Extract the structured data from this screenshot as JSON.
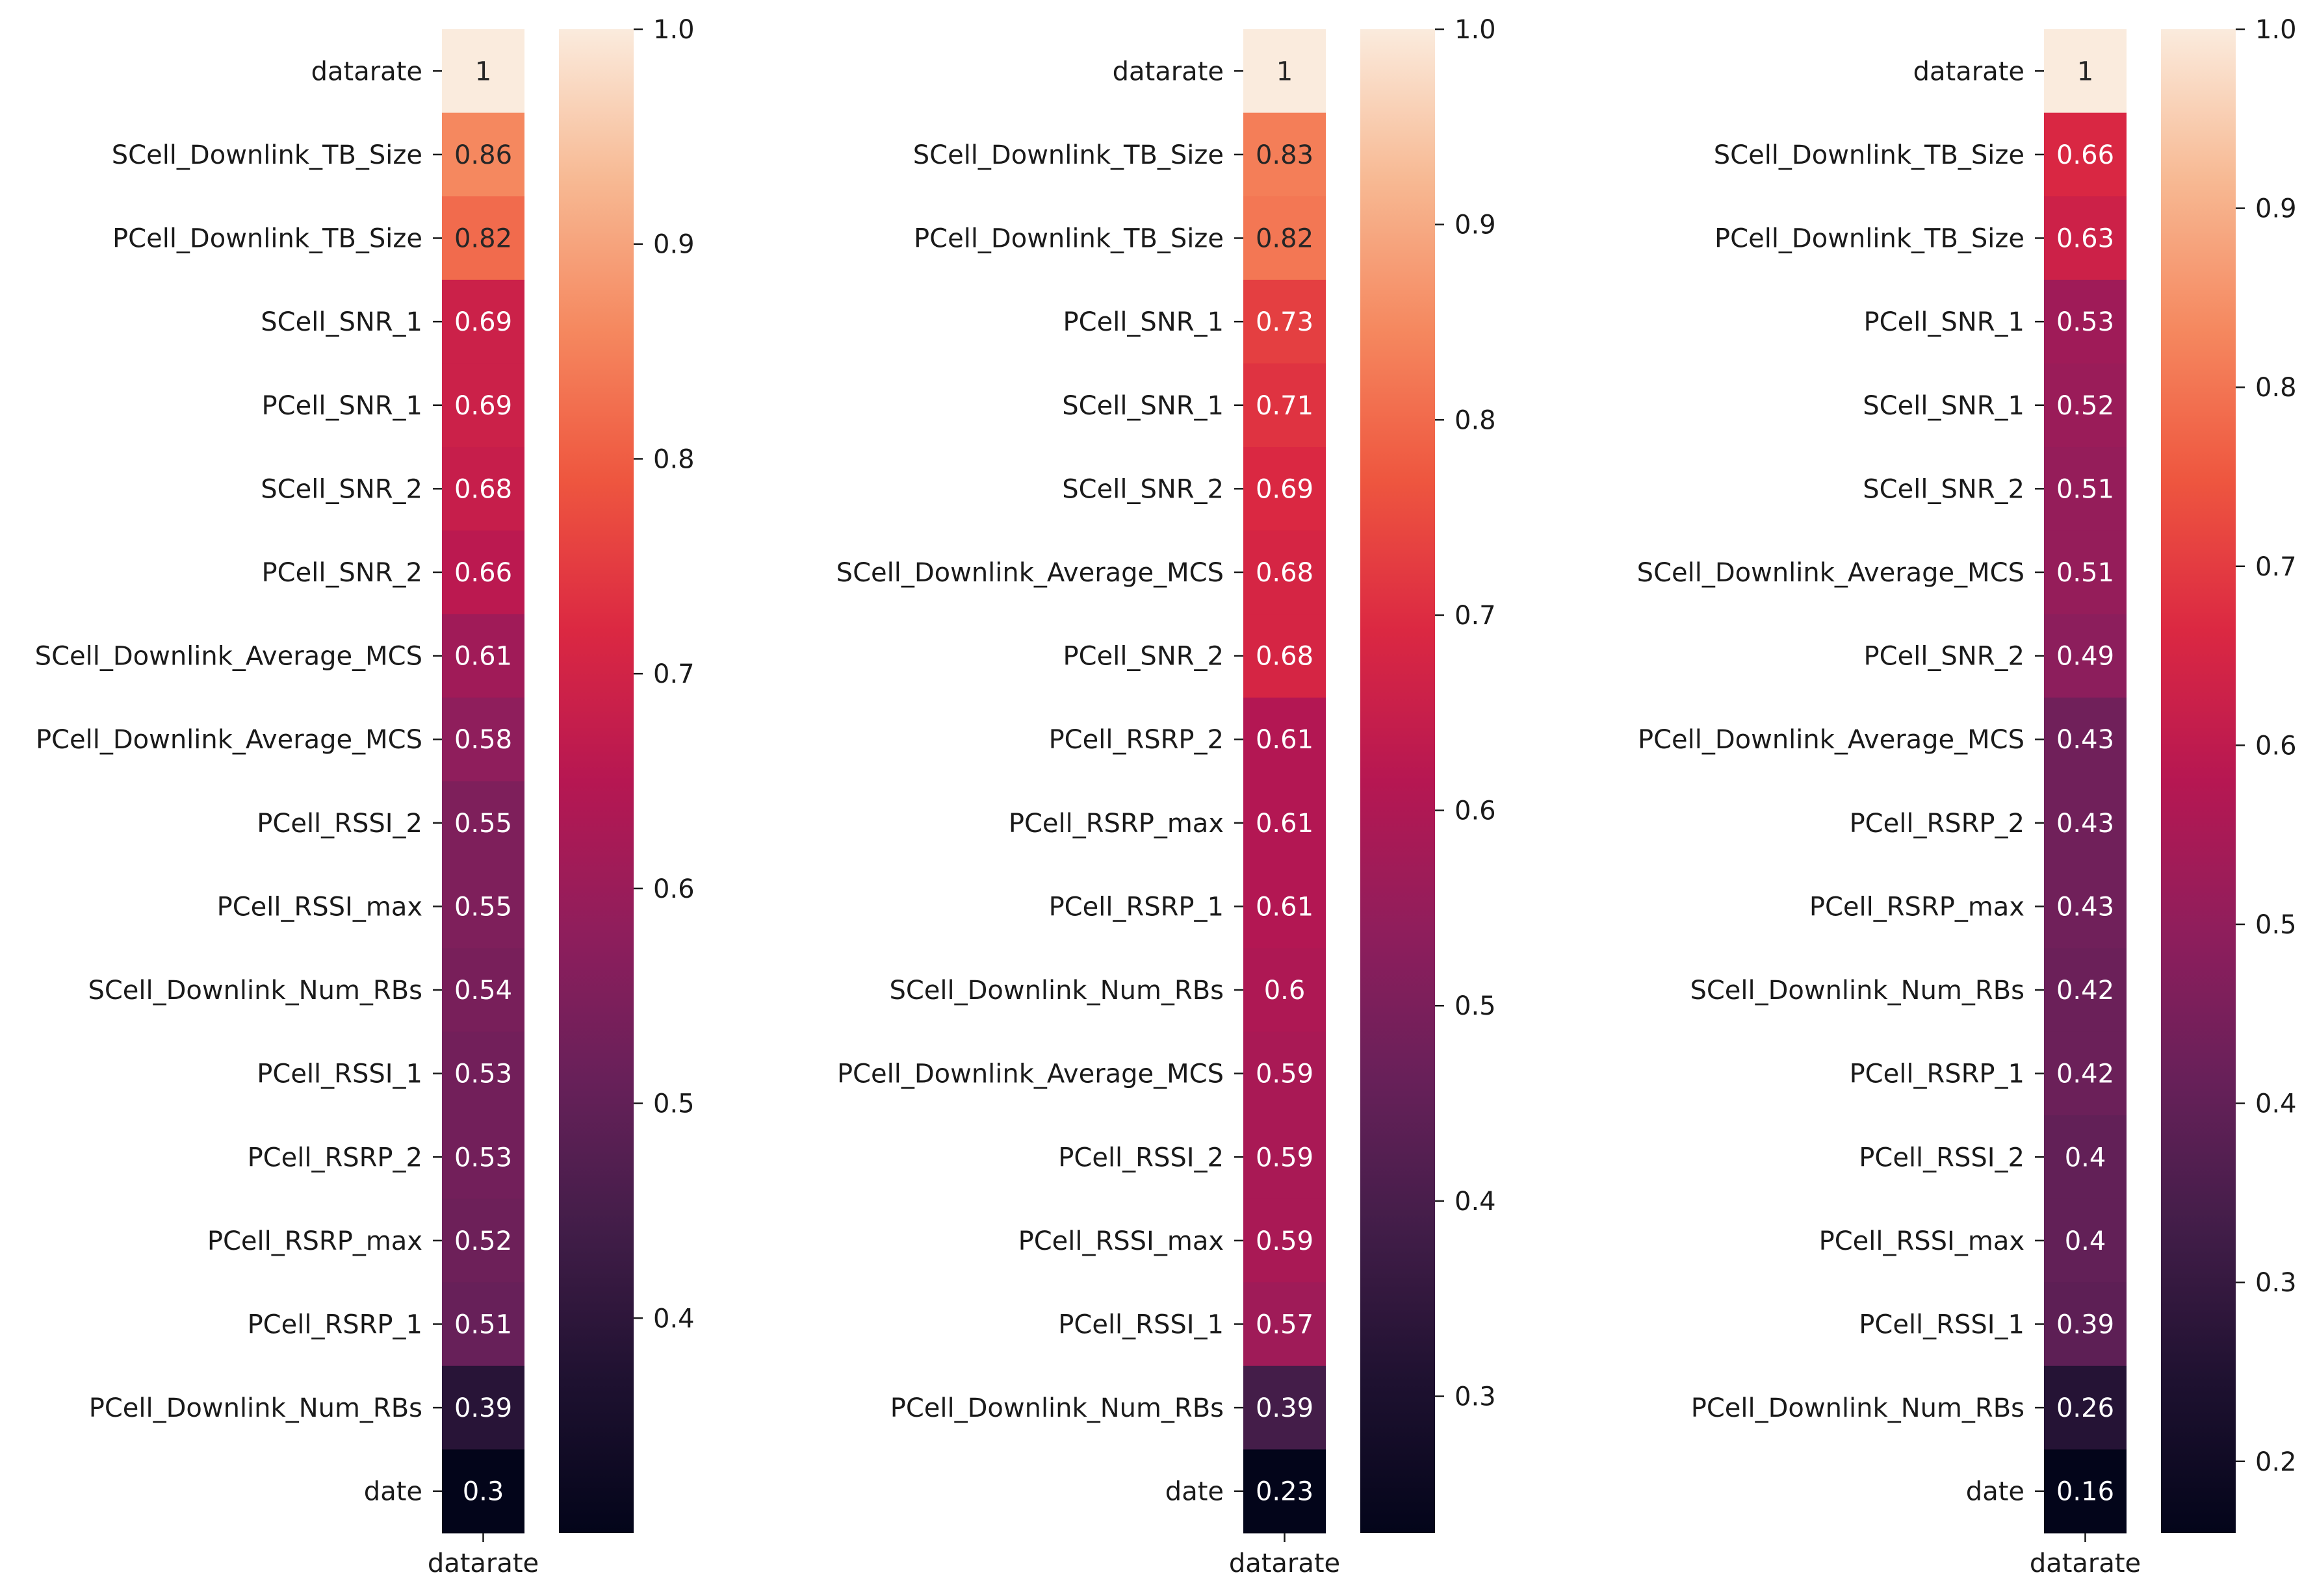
{
  "chart_data": [
    {
      "type": "heatmap",
      "title": "",
      "xlabel": "",
      "ylabel": "",
      "x_categories": [
        "datarate"
      ],
      "rows": [
        "datarate",
        "SCell_Downlink_TB_Size",
        "PCell_Downlink_TB_Size",
        "SCell_SNR_1",
        "PCell_SNR_1",
        "SCell_SNR_2",
        "PCell_SNR_2",
        "SCell_Downlink_Average_MCS",
        "PCell_Downlink_Average_MCS",
        "PCell_RSSI_2",
        "PCell_RSSI_max",
        "SCell_Downlink_Num_RBs",
        "PCell_RSSI_1",
        "PCell_RSRP_2",
        "PCell_RSRP_max",
        "PCell_RSRP_1",
        "PCell_Downlink_Num_RBs",
        "date"
      ],
      "values": [
        1,
        0.86,
        0.82,
        0.69,
        0.69,
        0.68,
        0.66,
        0.61,
        0.58,
        0.55,
        0.55,
        0.54,
        0.53,
        0.53,
        0.52,
        0.51,
        0.39,
        0.3
      ],
      "value_labels": [
        "1",
        "0.86",
        "0.82",
        "0.69",
        "0.69",
        "0.68",
        "0.66",
        "0.61",
        "0.58",
        "0.55",
        "0.55",
        "0.54",
        "0.53",
        "0.53",
        "0.52",
        "0.51",
        "0.39",
        "0.3"
      ],
      "colorbar": {
        "min": 0.3,
        "max": 1.0,
        "ticks": [
          "0.4",
          "0.5",
          "0.6",
          "0.7",
          "0.8",
          "0.9",
          "1.0"
        ]
      },
      "colormap": "rocket"
    },
    {
      "type": "heatmap",
      "title": "",
      "xlabel": "",
      "ylabel": "",
      "x_categories": [
        "datarate"
      ],
      "rows": [
        "datarate",
        "SCell_Downlink_TB_Size",
        "PCell_Downlink_TB_Size",
        "PCell_SNR_1",
        "SCell_SNR_1",
        "SCell_SNR_2",
        "SCell_Downlink_Average_MCS",
        "PCell_SNR_2",
        "PCell_RSRP_2",
        "PCell_RSRP_max",
        "PCell_RSRP_1",
        "SCell_Downlink_Num_RBs",
        "PCell_Downlink_Average_MCS",
        "PCell_RSSI_2",
        "PCell_RSSI_max",
        "PCell_RSSI_1",
        "PCell_Downlink_Num_RBs",
        "date"
      ],
      "values": [
        1,
        0.83,
        0.82,
        0.73,
        0.71,
        0.69,
        0.68,
        0.68,
        0.61,
        0.61,
        0.61,
        0.6,
        0.59,
        0.59,
        0.59,
        0.57,
        0.39,
        0.23
      ],
      "value_labels": [
        "1",
        "0.83",
        "0.82",
        "0.73",
        "0.71",
        "0.69",
        "0.68",
        "0.68",
        "0.61",
        "0.61",
        "0.61",
        "0.6",
        "0.59",
        "0.59",
        "0.59",
        "0.57",
        "0.39",
        "0.23"
      ],
      "colorbar": {
        "min": 0.23,
        "max": 1.0,
        "ticks": [
          "0.3",
          "0.4",
          "0.5",
          "0.6",
          "0.7",
          "0.8",
          "0.9",
          "1.0"
        ]
      },
      "colormap": "rocket"
    },
    {
      "type": "heatmap",
      "title": "",
      "xlabel": "",
      "ylabel": "",
      "x_categories": [
        "datarate"
      ],
      "rows": [
        "datarate",
        "SCell_Downlink_TB_Size",
        "PCell_Downlink_TB_Size",
        "PCell_SNR_1",
        "SCell_SNR_1",
        "SCell_SNR_2",
        "SCell_Downlink_Average_MCS",
        "PCell_SNR_2",
        "PCell_Downlink_Average_MCS",
        "PCell_RSRP_2",
        "PCell_RSRP_max",
        "SCell_Downlink_Num_RBs",
        "PCell_RSRP_1",
        "PCell_RSSI_2",
        "PCell_RSSI_max",
        "PCell_RSSI_1",
        "PCell_Downlink_Num_RBs",
        "date"
      ],
      "values": [
        1,
        0.66,
        0.63,
        0.53,
        0.52,
        0.51,
        0.51,
        0.49,
        0.43,
        0.43,
        0.43,
        0.42,
        0.42,
        0.4,
        0.4,
        0.39,
        0.26,
        0.16
      ],
      "value_labels": [
        "1",
        "0.66",
        "0.63",
        "0.53",
        "0.52",
        "0.51",
        "0.51",
        "0.49",
        "0.43",
        "0.43",
        "0.43",
        "0.42",
        "0.42",
        "0.4",
        "0.4",
        "0.39",
        "0.26",
        "0.16"
      ],
      "colorbar": {
        "min": 0.16,
        "max": 1.0,
        "ticks": [
          "0.2",
          "0.3",
          "0.4",
          "0.5",
          "0.6",
          "0.7",
          "0.8",
          "0.9",
          "1.0"
        ]
      },
      "colormap": "rocket"
    }
  ]
}
